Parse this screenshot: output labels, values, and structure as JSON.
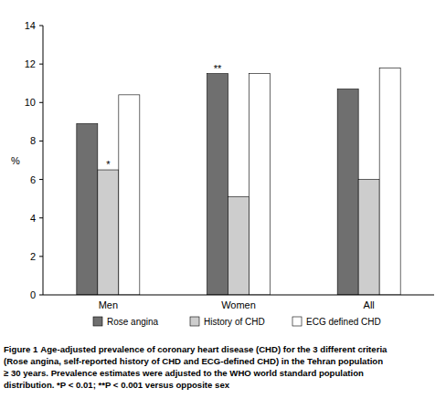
{
  "chart_data": {
    "type": "bar",
    "categories": [
      "Men",
      "Women",
      "All"
    ],
    "series": [
      {
        "name": "Rose angina",
        "color": "#6f6f6f",
        "values": [
          8.9,
          11.5,
          10.7
        ]
      },
      {
        "name": "History of CHD",
        "color": "#cdcdcd",
        "values": [
          6.5,
          5.1,
          6.0
        ]
      },
      {
        "name": "ECG defined CHD",
        "color": "#ffffff",
        "values": [
          10.4,
          11.5,
          11.8
        ]
      }
    ],
    "y_label": "%",
    "ylim": [
      0,
      14
    ],
    "yticks": [
      0,
      2,
      4,
      6,
      8,
      10,
      12,
      14
    ],
    "grid": false,
    "legend": "bottom",
    "annotations": [
      {
        "text": "*",
        "category": "Men",
        "series": "History of CHD"
      },
      {
        "text": "**",
        "category": "Women",
        "series": "Rose angina"
      }
    ],
    "caption_label": "Figure 1",
    "caption_lines": [
      "Age-adjusted prevalence of coronary heart disease (CHD) for the 3 different criteria",
      "(Rose angina, self-reported history of CHD and ECG-defined CHD) in the Tehran population",
      "≥ 30 years. Prevalence estimates were adjusted to the WHO world standard population",
      "distribution. *P < 0.01; **P < 0.001 versus opposite sex"
    ]
  }
}
